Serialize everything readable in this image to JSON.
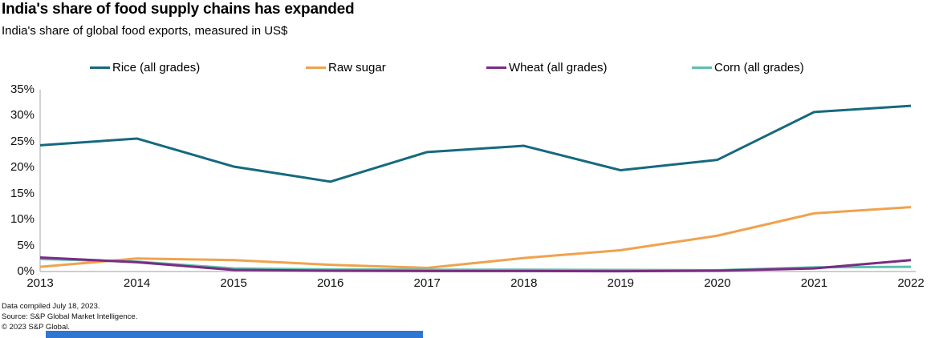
{
  "header": {
    "title": "India's share of food supply chains has expanded",
    "subtitle": "India's share of global food exports, measured in US$"
  },
  "chart_data": {
    "type": "line",
    "x": [
      2013,
      2014,
      2015,
      2016,
      2017,
      2018,
      2019,
      2020,
      2021,
      2022
    ],
    "series": [
      {
        "name": "Rice (all grades)",
        "color": "#16697F",
        "values": [
          24.3,
          25.6,
          20.2,
          17.3,
          23.0,
          24.2,
          19.5,
          21.5,
          30.7,
          31.9
        ]
      },
      {
        "name": "Raw sugar",
        "color": "#F0A24E",
        "values": [
          0.9,
          2.5,
          2.2,
          1.3,
          0.7,
          2.6,
          4.1,
          6.9,
          11.2,
          12.4
        ]
      },
      {
        "name": "Corn (all grades)",
        "color": "#5FBFAC",
        "values": [
          2.4,
          1.9,
          0.6,
          0.4,
          0.35,
          0.35,
          0.3,
          0.25,
          0.8,
          0.9
        ]
      },
      {
        "name": "Wheat (all grades)",
        "color": "#7A2C82",
        "values": [
          2.7,
          1.8,
          0.3,
          0.15,
          0.1,
          0.1,
          0.05,
          0.15,
          0.6,
          2.2
        ]
      }
    ],
    "legend_order": [
      "Rice (all grades)",
      "Raw sugar",
      "Wheat (all grades)",
      "Corn (all grades)"
    ],
    "legend_position": "top",
    "grid": false,
    "ylim": [
      0,
      35
    ],
    "y_ticks": [
      0,
      5,
      10,
      15,
      20,
      25,
      30,
      35
    ],
    "y_tick_labels": [
      "0%",
      "5%",
      "10%",
      "15%",
      "20%",
      "25%",
      "30%",
      "35%"
    ],
    "x_tick_labels": [
      "2013",
      "2014",
      "2015",
      "2016",
      "2017",
      "2018",
      "2019",
      "2020",
      "2021",
      "2022"
    ]
  },
  "footer": {
    "line1": "Data compiled July 18, 2023.",
    "line2": "Source: S&P Global Market Intelligence.",
    "line3": "© 2023 S&P Global."
  },
  "colors": {
    "axis": "#bebebe",
    "text": "#111111",
    "bottom_bar": "#2f76d2"
  }
}
